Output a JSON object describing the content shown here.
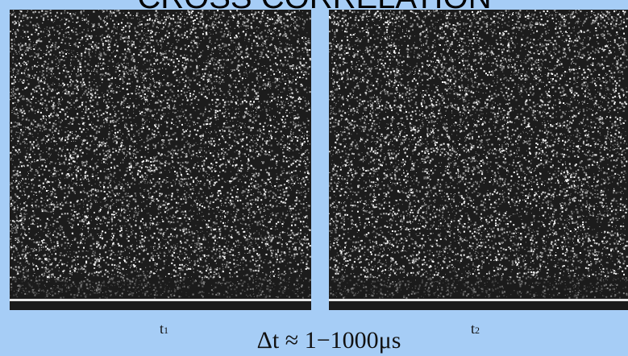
{
  "slide": {
    "title": "CROSS CORRELATION",
    "labels": [
      {
        "base": "t",
        "sub": "1"
      },
      {
        "base": "t",
        "sub": "2"
      }
    ],
    "formula": "Δt ≈ 1−1000μs"
  }
}
